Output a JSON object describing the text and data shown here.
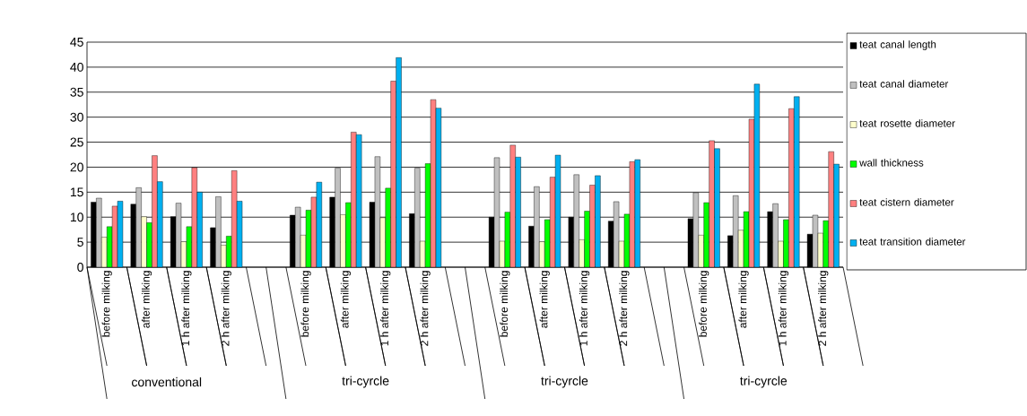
{
  "chart_data": {
    "type": "bar",
    "categories": [
      "before milking",
      "after milking",
      "1 h after milking",
      "2 h after milking",
      null,
      "before milking",
      "after milking",
      "1 h after milking",
      "2 h after milking",
      null,
      "before milking",
      "after milking",
      "1 h after milking",
      "2 h after milking",
      null,
      "before milking",
      "after milking",
      "1 h after milking",
      "2 h after milking"
    ],
    "series": [
      {
        "name": "teat canal length",
        "color": "#000000",
        "values": [
          13.0,
          12.6,
          10.1,
          7.9,
          null,
          10.4,
          14.0,
          13.0,
          10.7,
          null,
          10.0,
          8.2,
          10.0,
          9.2,
          null,
          9.7,
          6.3,
          11.1,
          6.6
        ]
      },
      {
        "name": "teat canal diameter",
        "color": "#c0c0c0",
        "values": [
          13.8,
          15.9,
          12.8,
          14.1,
          null,
          12.0,
          19.8,
          22.1,
          19.8,
          null,
          21.9,
          16.1,
          18.5,
          13.1,
          null,
          14.9,
          14.3,
          12.7,
          10.4
        ]
      },
      {
        "name": "teat rosette diameter",
        "color": "#ffffcc",
        "values": [
          6.0,
          10.1,
          5.1,
          4.4,
          null,
          6.4,
          10.5,
          9.9,
          5.2,
          null,
          5.2,
          5.1,
          5.5,
          5.2,
          null,
          6.4,
          7.4,
          5.2,
          6.8
        ]
      },
      {
        "name": "wall thickness",
        "color": "#00ff00",
        "values": [
          8.1,
          8.9,
          8.1,
          6.2,
          null,
          11.4,
          12.9,
          15.8,
          20.7,
          null,
          11.0,
          9.5,
          11.2,
          10.6,
          null,
          12.9,
          11.1,
          9.5,
          9.3
        ]
      },
      {
        "name": "teat cistern diameter",
        "color": "#ff8080",
        "values": [
          12.2,
          22.3,
          19.9,
          19.3,
          null,
          14.0,
          27.0,
          37.2,
          33.5,
          null,
          24.4,
          18.0,
          16.4,
          21.1,
          null,
          25.3,
          29.6,
          31.7,
          23.1
        ]
      },
      {
        "name": "teat transition diameter",
        "color": "#00b0f0",
        "values": [
          13.2,
          17.1,
          15.0,
          13.2,
          null,
          17.0,
          26.5,
          41.9,
          31.8,
          null,
          22.0,
          22.4,
          18.3,
          21.5,
          null,
          23.7,
          36.6,
          34.1,
          20.6
        ]
      }
    ],
    "annotations": [
      "conventional",
      "tri-cyrcle",
      "tri-cyrcle",
      "tri-cyrcle"
    ],
    "ylim": [
      0,
      45
    ],
    "yticks": [
      0,
      5,
      10,
      15,
      20,
      25,
      30,
      35,
      40,
      45
    ],
    "grid": "y",
    "legend": "right"
  }
}
